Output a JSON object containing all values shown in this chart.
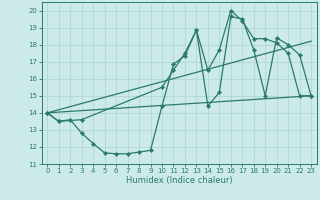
{
  "xlabel": "Humidex (Indice chaleur)",
  "bg_color": "#cceaea",
  "line_color": "#2a7a6a",
  "grid_color": "#b0d8d8",
  "xlim": [
    -0.5,
    23.5
  ],
  "ylim": [
    11,
    20.5
  ],
  "yticks": [
    11,
    12,
    13,
    14,
    15,
    16,
    17,
    18,
    19,
    20
  ],
  "xticks": [
    0,
    1,
    2,
    3,
    4,
    5,
    6,
    7,
    8,
    9,
    10,
    11,
    12,
    13,
    14,
    15,
    16,
    17,
    18,
    19,
    20,
    21,
    22,
    23
  ],
  "series1_x": [
    0,
    1,
    2,
    3,
    4,
    5,
    6,
    7,
    8,
    9,
    10,
    11,
    12,
    13,
    14,
    15,
    16,
    17,
    18,
    19,
    20,
    21,
    22,
    23
  ],
  "series1_y": [
    14.0,
    13.5,
    13.6,
    12.8,
    12.2,
    11.65,
    11.6,
    11.6,
    11.7,
    11.8,
    14.4,
    16.85,
    17.35,
    18.85,
    14.4,
    15.2,
    19.65,
    19.5,
    17.7,
    15.0,
    18.4,
    18.0,
    17.4,
    15.0
  ],
  "series2_x": [
    0,
    1,
    3,
    10,
    11,
    12,
    13,
    14,
    15,
    16,
    17,
    18,
    19,
    20,
    21,
    22,
    23
  ],
  "series2_y": [
    14.0,
    13.5,
    13.6,
    15.5,
    16.5,
    17.5,
    18.85,
    16.5,
    17.7,
    20.0,
    19.4,
    18.35,
    18.35,
    18.1,
    17.5,
    15.0,
    15.0
  ],
  "line3_x": [
    0,
    23
  ],
  "line3_y": [
    14.0,
    15.0
  ],
  "line4_x": [
    0,
    23
  ],
  "line4_y": [
    14.0,
    18.2
  ]
}
